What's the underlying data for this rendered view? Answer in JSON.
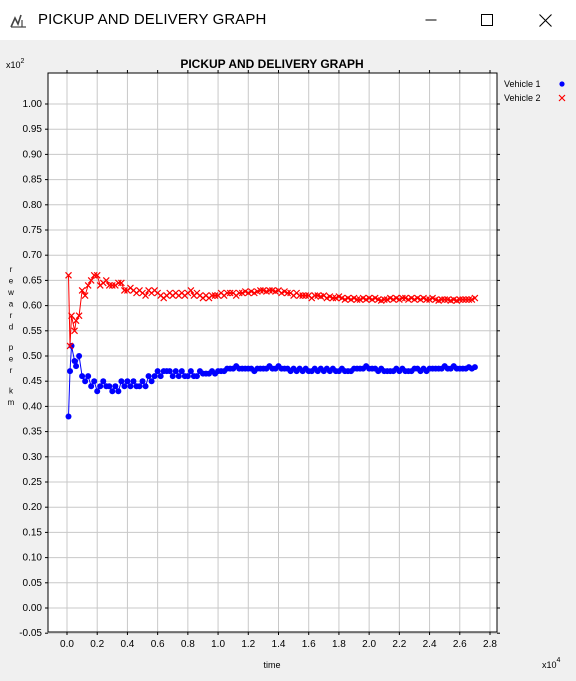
{
  "window": {
    "title": "PICKUP AND DELIVERY GRAPH",
    "buttons": {
      "minimize": "minimize",
      "maximize": "maximize",
      "close": "close"
    }
  },
  "chart_data": {
    "type": "scatter",
    "title": "PICKUP AND DELIVERY GRAPH",
    "xlabel": "time",
    "ylabel": "reward per km",
    "x_multiplier": "x10",
    "x_multiplier_exp": "4",
    "y_multiplier": "x10",
    "y_multiplier_exp": "2",
    "xlim": [
      -0.1,
      2.82
    ],
    "ylim": [
      -0.05,
      1.05
    ],
    "x_ticks": [
      "0.0",
      "0.2",
      "0.4",
      "0.6",
      "0.8",
      "1.0",
      "1.2",
      "1.4",
      "1.6",
      "1.8",
      "2.0",
      "2.2",
      "2.4",
      "2.6",
      "2.8"
    ],
    "y_ticks": [
      "-0.05",
      "0.00",
      "0.05",
      "0.10",
      "0.15",
      "0.20",
      "0.25",
      "0.30",
      "0.35",
      "0.40",
      "0.45",
      "0.50",
      "0.55",
      "0.60",
      "0.65",
      "0.70",
      "0.75",
      "0.80",
      "0.85",
      "0.90",
      "0.95",
      "1.00"
    ],
    "grid": true,
    "legend_position": "top-right outside",
    "series": [
      {
        "name": "Vehicle 1",
        "color": "#0000ff",
        "marker": "dot",
        "x": [
          0.01,
          0.02,
          0.03,
          0.05,
          0.06,
          0.08,
          0.1,
          0.12,
          0.14,
          0.16,
          0.18,
          0.2,
          0.22,
          0.24,
          0.26,
          0.28,
          0.3,
          0.32,
          0.34,
          0.36,
          0.38,
          0.4,
          0.42,
          0.44,
          0.46,
          0.48,
          0.5,
          0.52,
          0.54,
          0.56,
          0.58,
          0.6,
          0.62,
          0.64,
          0.66,
          0.68,
          0.7,
          0.72,
          0.74,
          0.76,
          0.78,
          0.8,
          0.82,
          0.84,
          0.86,
          0.88,
          0.9,
          0.92,
          0.94,
          0.96,
          0.98,
          1.0,
          1.02,
          1.04,
          1.06,
          1.08,
          1.1,
          1.12,
          1.14,
          1.16,
          1.18,
          1.2,
          1.22,
          1.24,
          1.26,
          1.28,
          1.3,
          1.32,
          1.34,
          1.36,
          1.38,
          1.4,
          1.42,
          1.44,
          1.46,
          1.48,
          1.5,
          1.52,
          1.54,
          1.56,
          1.58,
          1.6,
          1.62,
          1.64,
          1.66,
          1.68,
          1.7,
          1.72,
          1.74,
          1.76,
          1.78,
          1.8,
          1.82,
          1.84,
          1.86,
          1.88,
          1.9,
          1.92,
          1.94,
          1.96,
          1.98,
          2.0,
          2.02,
          2.04,
          2.06,
          2.08,
          2.1,
          2.12,
          2.14,
          2.16,
          2.18,
          2.2,
          2.22,
          2.24,
          2.26,
          2.28,
          2.3,
          2.32,
          2.34,
          2.36,
          2.38,
          2.4,
          2.42,
          2.44,
          2.46,
          2.48,
          2.5,
          2.52,
          2.54,
          2.56,
          2.58,
          2.6,
          2.62,
          2.64,
          2.66,
          2.68,
          2.7
        ],
        "y": [
          0.38,
          0.47,
          0.52,
          0.49,
          0.48,
          0.5,
          0.46,
          0.45,
          0.46,
          0.44,
          0.45,
          0.43,
          0.44,
          0.45,
          0.44,
          0.44,
          0.43,
          0.44,
          0.43,
          0.45,
          0.44,
          0.45,
          0.44,
          0.45,
          0.44,
          0.44,
          0.45,
          0.44,
          0.46,
          0.45,
          0.46,
          0.47,
          0.46,
          0.47,
          0.47,
          0.47,
          0.46,
          0.47,
          0.46,
          0.47,
          0.46,
          0.46,
          0.47,
          0.46,
          0.46,
          0.47,
          0.465,
          0.465,
          0.465,
          0.47,
          0.465,
          0.47,
          0.47,
          0.47,
          0.475,
          0.475,
          0.475,
          0.48,
          0.475,
          0.475,
          0.475,
          0.475,
          0.475,
          0.47,
          0.475,
          0.475,
          0.475,
          0.475,
          0.48,
          0.475,
          0.475,
          0.48,
          0.475,
          0.475,
          0.475,
          0.47,
          0.475,
          0.47,
          0.475,
          0.47,
          0.475,
          0.47,
          0.47,
          0.475,
          0.47,
          0.475,
          0.47,
          0.475,
          0.47,
          0.475,
          0.47,
          0.47,
          0.475,
          0.47,
          0.47,
          0.47,
          0.475,
          0.475,
          0.475,
          0.475,
          0.48,
          0.475,
          0.475,
          0.475,
          0.47,
          0.475,
          0.47,
          0.47,
          0.47,
          0.47,
          0.475,
          0.47,
          0.475,
          0.47,
          0.47,
          0.47,
          0.475,
          0.475,
          0.47,
          0.475,
          0.47,
          0.475,
          0.475,
          0.475,
          0.475,
          0.475,
          0.48,
          0.475,
          0.475,
          0.48,
          0.475,
          0.475,
          0.475,
          0.475,
          0.478,
          0.475,
          0.478
        ]
      },
      {
        "name": "Vehicle 2",
        "color": "#ff0000",
        "marker": "x",
        "x": [
          0.01,
          0.02,
          0.03,
          0.05,
          0.06,
          0.08,
          0.1,
          0.12,
          0.14,
          0.16,
          0.18,
          0.2,
          0.22,
          0.24,
          0.26,
          0.28,
          0.3,
          0.32,
          0.34,
          0.36,
          0.38,
          0.4,
          0.42,
          0.44,
          0.46,
          0.48,
          0.5,
          0.52,
          0.54,
          0.56,
          0.58,
          0.6,
          0.62,
          0.64,
          0.66,
          0.68,
          0.7,
          0.72,
          0.74,
          0.76,
          0.78,
          0.8,
          0.82,
          0.84,
          0.86,
          0.88,
          0.9,
          0.92,
          0.94,
          0.96,
          0.98,
          1.0,
          1.02,
          1.04,
          1.06,
          1.08,
          1.1,
          1.12,
          1.14,
          1.16,
          1.18,
          1.2,
          1.22,
          1.24,
          1.26,
          1.28,
          1.3,
          1.32,
          1.34,
          1.36,
          1.38,
          1.4,
          1.42,
          1.44,
          1.46,
          1.48,
          1.5,
          1.52,
          1.54,
          1.56,
          1.58,
          1.6,
          1.62,
          1.64,
          1.66,
          1.68,
          1.7,
          1.72,
          1.74,
          1.76,
          1.78,
          1.8,
          1.82,
          1.84,
          1.86,
          1.88,
          1.9,
          1.92,
          1.94,
          1.96,
          1.98,
          2.0,
          2.02,
          2.04,
          2.06,
          2.08,
          2.1,
          2.12,
          2.14,
          2.16,
          2.18,
          2.2,
          2.22,
          2.24,
          2.26,
          2.28,
          2.3,
          2.32,
          2.34,
          2.36,
          2.38,
          2.4,
          2.42,
          2.44,
          2.46,
          2.48,
          2.5,
          2.52,
          2.54,
          2.56,
          2.58,
          2.6,
          2.62,
          2.64,
          2.66,
          2.68,
          2.7
        ],
        "y": [
          0.66,
          0.52,
          0.58,
          0.55,
          0.57,
          0.58,
          0.63,
          0.62,
          0.64,
          0.65,
          0.66,
          0.66,
          0.64,
          0.645,
          0.65,
          0.64,
          0.64,
          0.64,
          0.645,
          0.645,
          0.63,
          0.63,
          0.635,
          0.63,
          0.625,
          0.63,
          0.625,
          0.62,
          0.63,
          0.625,
          0.63,
          0.625,
          0.62,
          0.615,
          0.62,
          0.625,
          0.62,
          0.625,
          0.62,
          0.625,
          0.62,
          0.625,
          0.63,
          0.62,
          0.625,
          0.62,
          0.615,
          0.62,
          0.615,
          0.62,
          0.62,
          0.62,
          0.625,
          0.62,
          0.625,
          0.625,
          0.625,
          0.62,
          0.625,
          0.625,
          0.628,
          0.625,
          0.628,
          0.625,
          0.628,
          0.63,
          0.63,
          0.628,
          0.63,
          0.63,
          0.628,
          0.63,
          0.625,
          0.628,
          0.625,
          0.625,
          0.62,
          0.625,
          0.62,
          0.62,
          0.62,
          0.62,
          0.615,
          0.62,
          0.62,
          0.618,
          0.62,
          0.615,
          0.618,
          0.615,
          0.615,
          0.618,
          0.615,
          0.612,
          0.615,
          0.612,
          0.615,
          0.612,
          0.612,
          0.615,
          0.612,
          0.615,
          0.612,
          0.615,
          0.612,
          0.61,
          0.612,
          0.612,
          0.615,
          0.612,
          0.615,
          0.612,
          0.615,
          0.615,
          0.612,
          0.615,
          0.612,
          0.615,
          0.612,
          0.615,
          0.612,
          0.612,
          0.615,
          0.612,
          0.61,
          0.612,
          0.612,
          0.612,
          0.61,
          0.612,
          0.61,
          0.612,
          0.612,
          0.612,
          0.612,
          0.612,
          0.615
        ]
      }
    ]
  }
}
